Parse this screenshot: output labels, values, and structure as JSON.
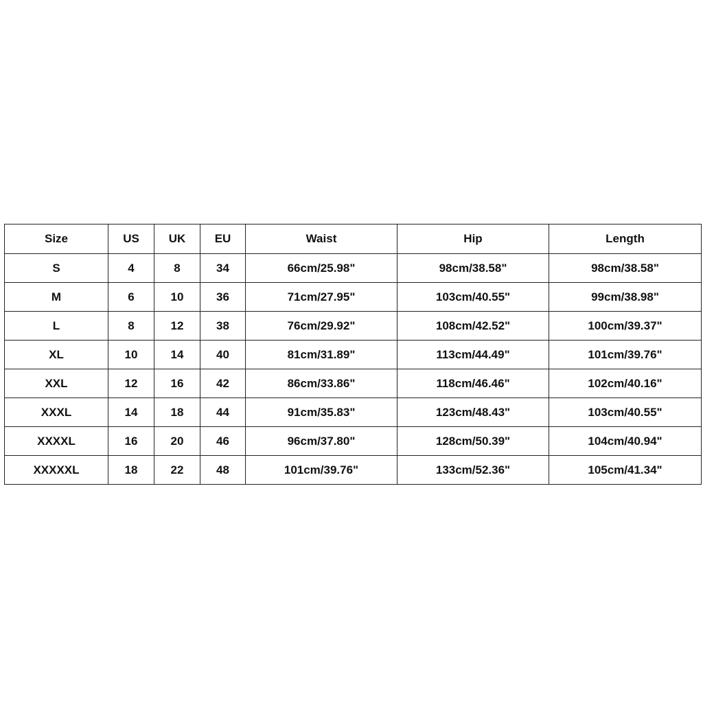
{
  "table": {
    "headers": [
      "Size",
      "US",
      "UK",
      "EU",
      "Waist",
      "Hip",
      "Length"
    ],
    "rows": [
      [
        "S",
        "4",
        "8",
        "34",
        "66cm/25.98\"",
        "98cm/38.58\"",
        "98cm/38.58\""
      ],
      [
        "M",
        "6",
        "10",
        "36",
        "71cm/27.95\"",
        "103cm/40.55\"",
        "99cm/38.98\""
      ],
      [
        "L",
        "8",
        "12",
        "38",
        "76cm/29.92\"",
        "108cm/42.52\"",
        "100cm/39.37\""
      ],
      [
        "XL",
        "10",
        "14",
        "40",
        "81cm/31.89\"",
        "113cm/44.49\"",
        "101cm/39.76\""
      ],
      [
        "XXL",
        "12",
        "16",
        "42",
        "86cm/33.86\"",
        "118cm/46.46\"",
        "102cm/40.16\""
      ],
      [
        "XXXL",
        "14",
        "18",
        "44",
        "91cm/35.83\"",
        "123cm/48.43\"",
        "103cm/40.55\""
      ],
      [
        "XXXXL",
        "16",
        "20",
        "46",
        "96cm/37.80\"",
        "128cm/50.39\"",
        "104cm/40.94\""
      ],
      [
        "XXXXXL",
        "18",
        "22",
        "48",
        "101cm/39.76\"",
        "133cm/52.36\"",
        "105cm/41.34\""
      ]
    ]
  }
}
